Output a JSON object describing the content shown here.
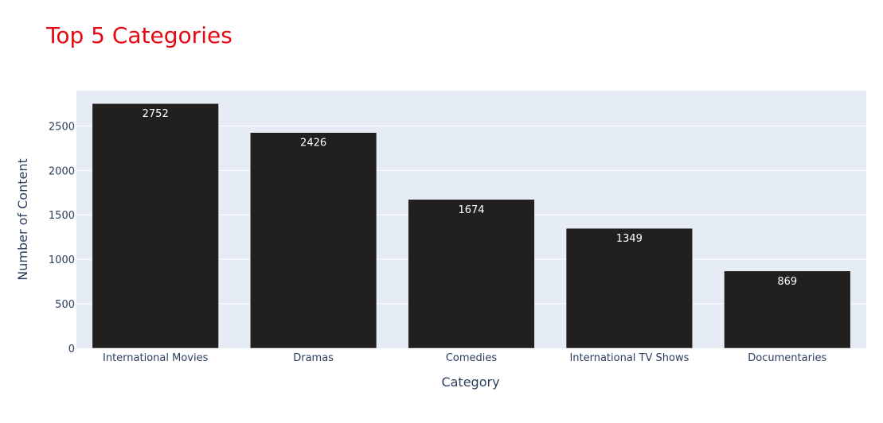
{
  "chart_data": {
    "type": "bar",
    "title": "Top 5 Categories",
    "xlabel": "Category",
    "ylabel": "Number of Content",
    "categories": [
      "International Movies",
      "Dramas",
      "Comedies",
      "International TV Shows",
      "Documentaries"
    ],
    "values": [
      2752,
      2426,
      1674,
      1349,
      869
    ],
    "data_labels": [
      "2752",
      "2426",
      "1674",
      "1349",
      "869"
    ],
    "ylim": [
      0,
      2897
    ],
    "yticks": [
      0,
      500,
      1000,
      1500,
      2000,
      2500
    ],
    "ytick_labels": [
      "0",
      "500",
      "1000",
      "1500",
      "2000",
      "2500"
    ],
    "grid": true,
    "colors": {
      "bar": "#221f1f",
      "bar_border": "#ffffff",
      "plot_bg": "#e5ecf6",
      "grid": "#ffffff",
      "title": "#e50914",
      "text": "#2a3f5f",
      "label": "#ffffff"
    }
  }
}
